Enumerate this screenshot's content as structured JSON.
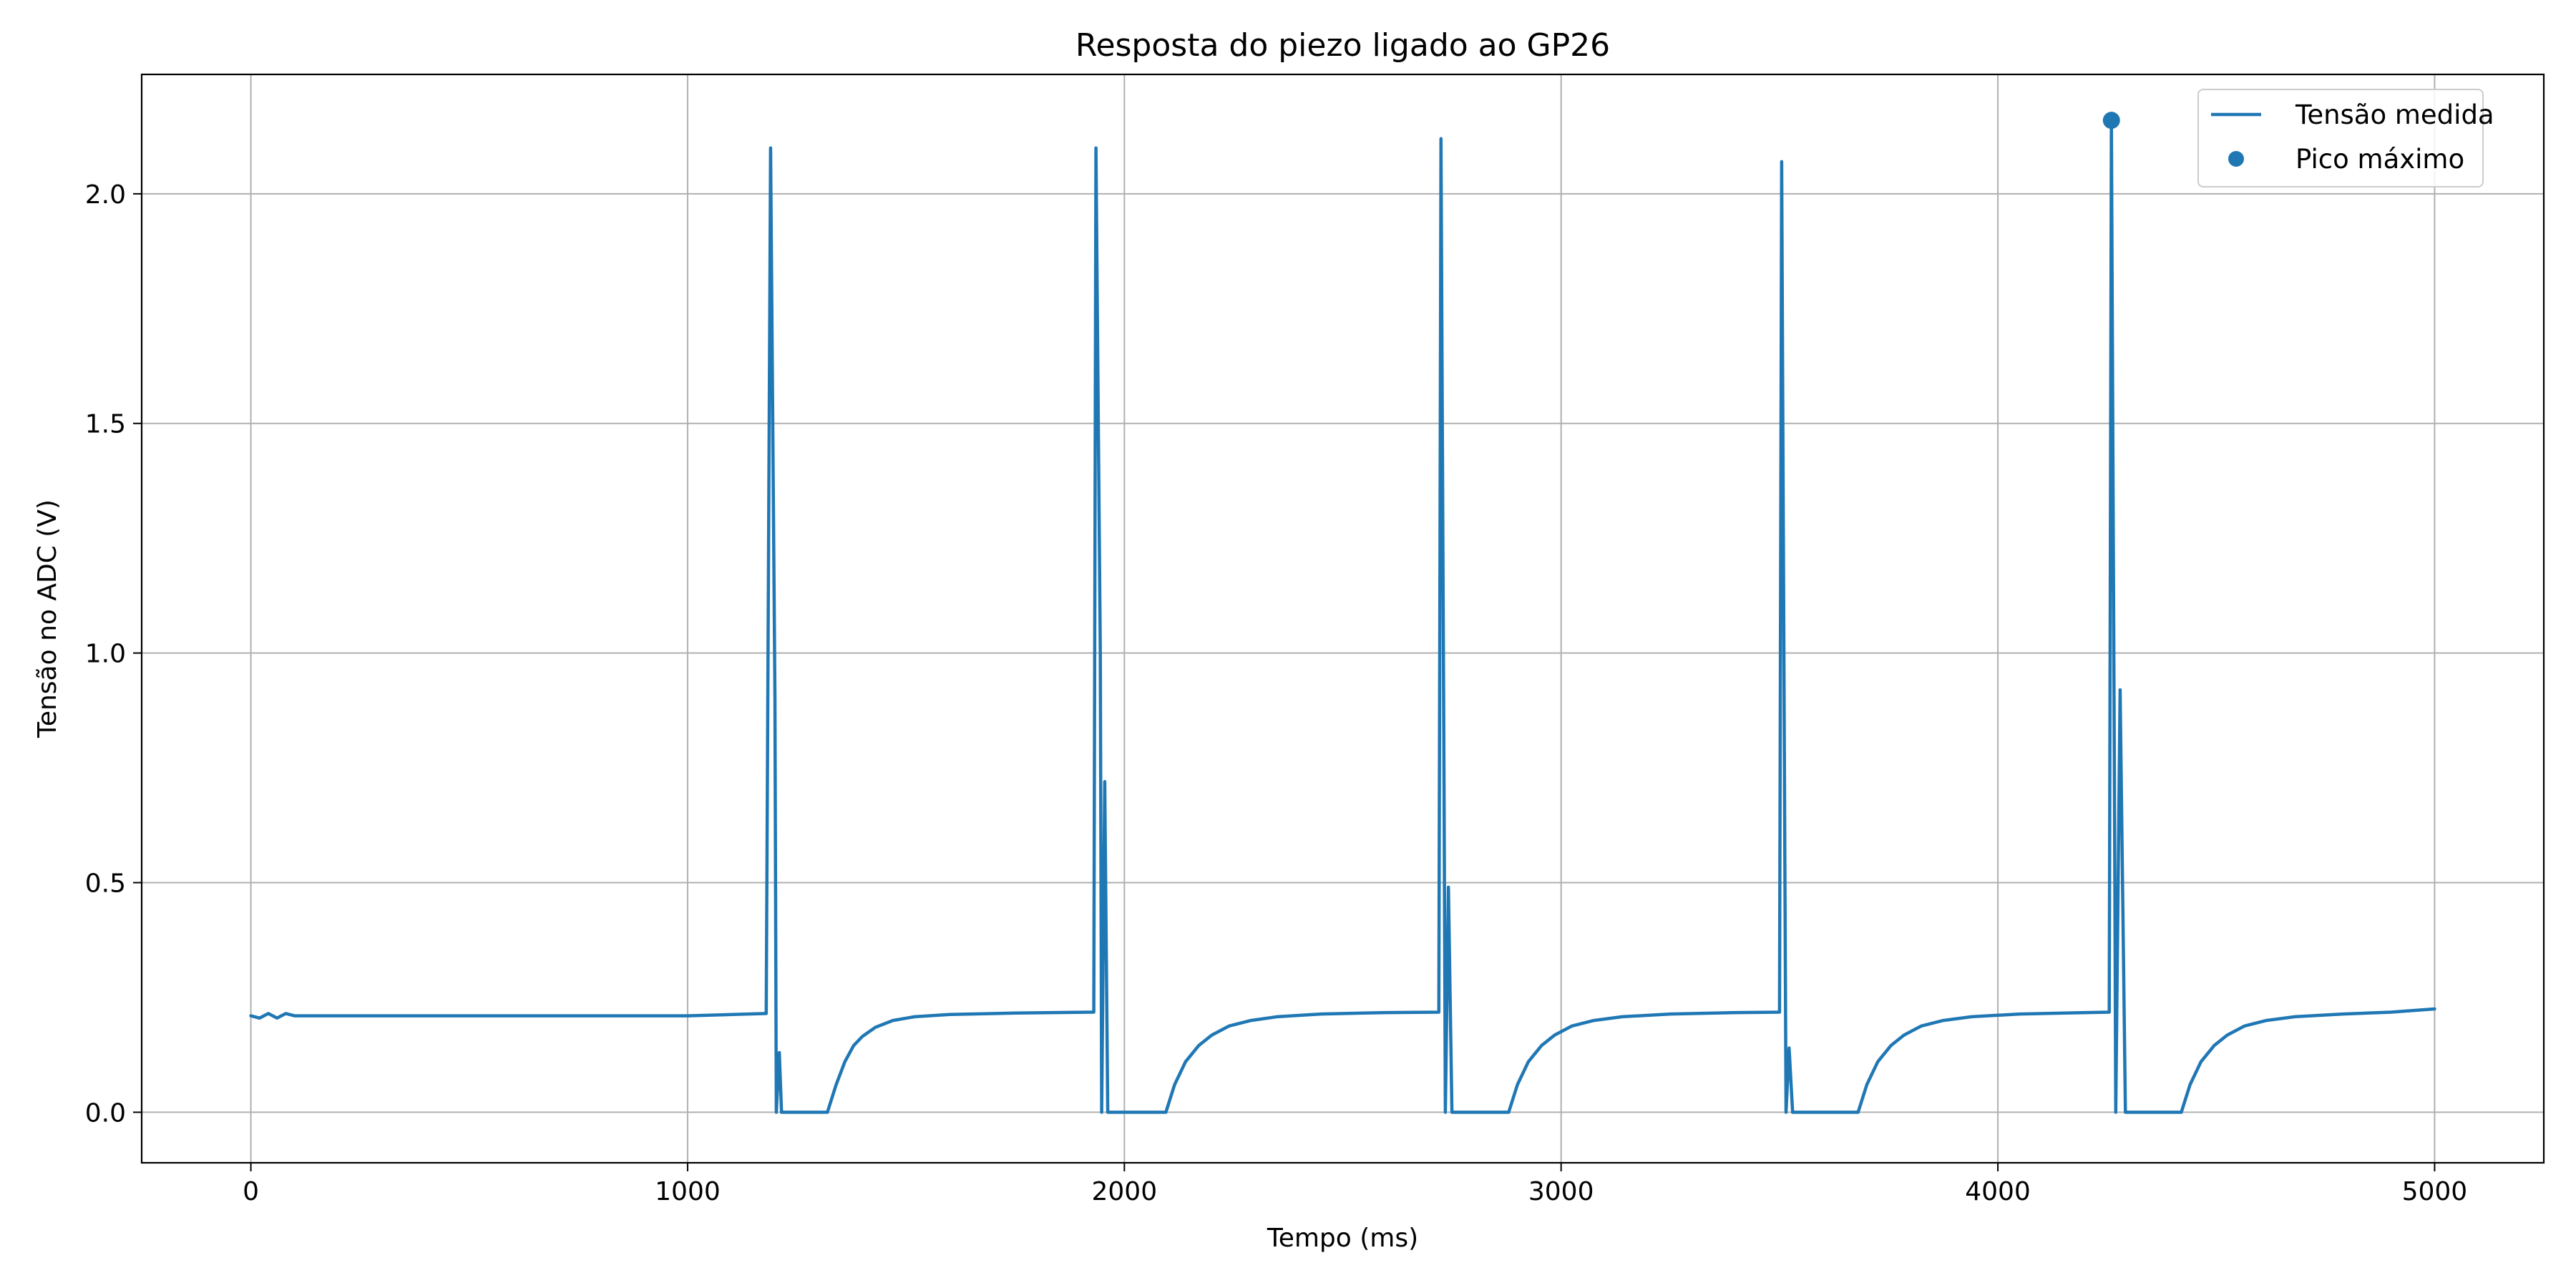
{
  "chart_data": {
    "type": "line",
    "title": "Resposta do piezo ligado ao GP26",
    "xlabel": "Tempo (ms)",
    "ylabel": "Tensão no ADC (V)",
    "xlim": [
      -250,
      5250
    ],
    "ylim": [
      -0.11,
      2.26
    ],
    "xticks": [
      0,
      1000,
      2000,
      3000,
      4000,
      5000
    ],
    "yticks": [
      0.0,
      0.5,
      1.0,
      1.5,
      2.0
    ],
    "xtick_labels": [
      "0",
      "1000",
      "2000",
      "3000",
      "4000",
      "5000"
    ],
    "ytick_labels": [
      "0.0",
      "0.5",
      "1.0",
      "1.5",
      "2.0"
    ],
    "grid": true,
    "legend_position": "top-right",
    "color": "#1f77b4",
    "series": [
      {
        "name": "Tensão medida",
        "kind": "line",
        "points": [
          [
            0,
            0.21
          ],
          [
            20,
            0.205
          ],
          [
            40,
            0.215
          ],
          [
            60,
            0.205
          ],
          [
            80,
            0.215
          ],
          [
            100,
            0.21
          ],
          [
            200,
            0.21
          ],
          [
            400,
            0.21
          ],
          [
            600,
            0.21
          ],
          [
            800,
            0.21
          ],
          [
            1000,
            0.21
          ],
          [
            1180,
            0.215
          ],
          [
            1190,
            2.1
          ],
          [
            1200,
            0.9
          ],
          [
            1203,
            0.0
          ],
          [
            1210,
            0.13
          ],
          [
            1215,
            0.0
          ],
          [
            1320,
            0.0
          ],
          [
            1340,
            0.06
          ],
          [
            1360,
            0.11
          ],
          [
            1380,
            0.145
          ],
          [
            1400,
            0.165
          ],
          [
            1430,
            0.185
          ],
          [
            1470,
            0.2
          ],
          [
            1520,
            0.208
          ],
          [
            1600,
            0.213
          ],
          [
            1750,
            0.216
          ],
          [
            1930,
            0.218
          ],
          [
            1935,
            2.1
          ],
          [
            1945,
            1.0
          ],
          [
            1948,
            0.0
          ],
          [
            1955,
            0.72
          ],
          [
            1962,
            0.0
          ],
          [
            2095,
            0.0
          ],
          [
            2115,
            0.06
          ],
          [
            2140,
            0.11
          ],
          [
            2170,
            0.145
          ],
          [
            2200,
            0.168
          ],
          [
            2240,
            0.188
          ],
          [
            2290,
            0.2
          ],
          [
            2350,
            0.208
          ],
          [
            2450,
            0.214
          ],
          [
            2600,
            0.217
          ],
          [
            2720,
            0.218
          ],
          [
            2725,
            2.12
          ],
          [
            2732,
            0.7
          ],
          [
            2735,
            0.0
          ],
          [
            2742,
            0.49
          ],
          [
            2750,
            0.0
          ],
          [
            2880,
            0.0
          ],
          [
            2900,
            0.06
          ],
          [
            2925,
            0.11
          ],
          [
            2955,
            0.145
          ],
          [
            2985,
            0.168
          ],
          [
            3025,
            0.188
          ],
          [
            3075,
            0.2
          ],
          [
            3140,
            0.208
          ],
          [
            3250,
            0.214
          ],
          [
            3400,
            0.217
          ],
          [
            3500,
            0.218
          ],
          [
            3505,
            2.07
          ],
          [
            3512,
            0.6
          ],
          [
            3515,
            0.0
          ],
          [
            3522,
            0.14
          ],
          [
            3530,
            0.0
          ],
          [
            3680,
            0.0
          ],
          [
            3700,
            0.06
          ],
          [
            3725,
            0.11
          ],
          [
            3755,
            0.145
          ],
          [
            3785,
            0.168
          ],
          [
            3825,
            0.188
          ],
          [
            3875,
            0.2
          ],
          [
            3940,
            0.208
          ],
          [
            4050,
            0.214
          ],
          [
            4200,
            0.217
          ],
          [
            4255,
            0.218
          ],
          [
            4260,
            2.16
          ],
          [
            4267,
            0.7
          ],
          [
            4270,
            0.0
          ],
          [
            4280,
            0.92
          ],
          [
            4292,
            0.0
          ],
          [
            4420,
            0.0
          ],
          [
            4440,
            0.06
          ],
          [
            4465,
            0.11
          ],
          [
            4495,
            0.145
          ],
          [
            4525,
            0.168
          ],
          [
            4565,
            0.188
          ],
          [
            4615,
            0.2
          ],
          [
            4680,
            0.208
          ],
          [
            4790,
            0.214
          ],
          [
            4900,
            0.218
          ],
          [
            5000,
            0.225
          ]
        ]
      },
      {
        "name": "Pico máximo",
        "kind": "scatter",
        "points": [
          [
            4260,
            2.16
          ]
        ]
      }
    ]
  }
}
